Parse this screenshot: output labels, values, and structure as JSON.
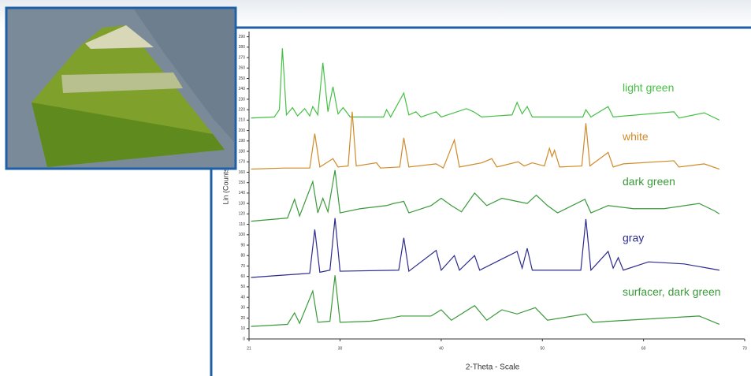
{
  "chart_data": {
    "type": "line",
    "x_label": "2-Theta - Scale",
    "y_label": "Lin (Counts)",
    "xlim": [
      21,
      70
    ],
    "xticks": [
      21,
      30,
      40,
      50,
      60,
      70
    ],
    "ylim": [
      0,
      295
    ],
    "yticks": [
      0,
      10,
      20,
      30,
      40,
      50,
      60,
      70,
      80,
      90,
      100,
      110,
      120,
      130,
      140,
      150,
      160,
      170,
      180,
      190,
      200,
      210,
      220,
      230,
      240,
      250,
      260,
      270,
      280,
      290
    ],
    "series": [
      {
        "name": "light green",
        "color": "#44c044",
        "x": [
          21.2,
          23.5,
          24.0,
          24.3,
          24.7,
          25.3,
          25.8,
          26.5,
          27.0,
          27.3,
          27.8,
          28.3,
          28.8,
          29.3,
          29.8,
          30.3,
          31,
          34.3,
          34.6,
          35.0,
          36.3,
          36.8,
          37.5,
          38,
          39.5,
          40,
          42.5,
          43.2,
          44,
          47.0,
          47.5,
          48.0,
          48.5,
          49,
          54.0,
          54.3,
          54.8,
          56.5,
          57,
          63,
          63.5,
          66,
          67.5
        ],
        "values": [
          212,
          213,
          220,
          279,
          215,
          222,
          214,
          221,
          214,
          223,
          215,
          265,
          218,
          242,
          216,
          222,
          213,
          213,
          220,
          213,
          236,
          215,
          218,
          213,
          218,
          213,
          221,
          218,
          213,
          215,
          227,
          216,
          223,
          213,
          213,
          220,
          213,
          223,
          213,
          218,
          212,
          217,
          210
        ]
      },
      {
        "name": "white",
        "color": "#d08a28",
        "x": [
          21.2,
          24.5,
          27.0,
          27.5,
          28.0,
          29.3,
          29.8,
          30.8,
          31.2,
          31.6,
          33.6,
          34.0,
          35.9,
          36.3,
          36.8,
          39.5,
          40.2,
          41.3,
          41.8,
          44,
          45,
          45.5,
          47.6,
          48.2,
          49,
          50.2,
          50.7,
          50.95,
          51.2,
          51.7,
          53.9,
          54.3,
          54.7,
          56.5,
          57.0,
          58,
          63,
          63.5,
          66,
          67.5
        ],
        "values": [
          163,
          164,
          164,
          197,
          165,
          173,
          165,
          166,
          218,
          166,
          169,
          164,
          165,
          193,
          165,
          168,
          164,
          191,
          165,
          169,
          173,
          165,
          170,
          166,
          169,
          166,
          183,
          175,
          181,
          165,
          166,
          207,
          166,
          179,
          165,
          168,
          171,
          165,
          168,
          163
        ]
      },
      {
        "name": "dark green",
        "color": "#3a9a3a",
        "x": [
          21.2,
          24.8,
          25.5,
          26.0,
          27.3,
          27.8,
          28.3,
          28.8,
          29.5,
          30.0,
          32,
          34.6,
          35.3,
          36.3,
          36.8,
          39,
          40,
          41,
          42,
          43.3,
          44.5,
          46,
          47.5,
          48.5,
          49.4,
          50.5,
          51.5,
          54.2,
          54.8,
          56.5,
          59,
          62,
          65.5,
          67,
          67.5
        ],
        "values": [
          113,
          116,
          134,
          118,
          151,
          121,
          135,
          122,
          162,
          121,
          125,
          128,
          130,
          132,
          121,
          128,
          135,
          128,
          122,
          140,
          128,
          135,
          132,
          130,
          138,
          128,
          121,
          134,
          121,
          128,
          125,
          125,
          130,
          123,
          120
        ]
      },
      {
        "name": "gray",
        "color": "#2b2b8f",
        "x": [
          21.2,
          24,
          27.0,
          27.5,
          28.0,
          29.0,
          29.5,
          30.0,
          35.8,
          36.3,
          36.8,
          39.5,
          40,
          41.3,
          41.8,
          43.3,
          43.8,
          47.5,
          48.0,
          48.5,
          49,
          53.8,
          54.3,
          54.8,
          56.5,
          57.0,
          57.5,
          58,
          60.5,
          64,
          67.5
        ],
        "values": [
          59,
          61,
          63,
          105,
          64,
          66,
          116,
          65,
          66,
          97,
          65,
          85,
          66,
          80,
          66,
          80,
          66,
          84,
          68,
          87,
          66,
          66,
          115,
          66,
          84,
          68,
          78,
          66,
          74,
          72,
          66
        ]
      },
      {
        "name": "surfacer, dark green",
        "color": "#3a9a3a",
        "x": [
          21.2,
          24.8,
          25.5,
          26.0,
          27.3,
          27.8,
          29.0,
          29.5,
          30.0,
          33,
          35,
          36,
          39,
          40,
          41,
          43.3,
          44.5,
          46,
          47.5,
          49.3,
          50.5,
          54.3,
          55,
          65.5,
          67,
          67.5
        ],
        "values": [
          12,
          14,
          25,
          15,
          46,
          16,
          17,
          61,
          16,
          17,
          20,
          22,
          22,
          28,
          18,
          32,
          18,
          28,
          24,
          30,
          18,
          24,
          16,
          22,
          16,
          14
        ]
      }
    ]
  }
}
